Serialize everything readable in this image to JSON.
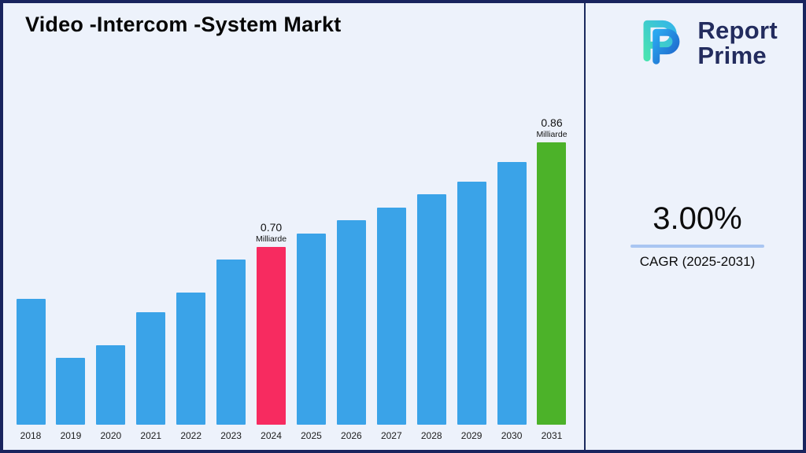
{
  "title": "Video -Intercom -System Markt",
  "brand": {
    "name_line1": "Report",
    "name_line2": "Prime"
  },
  "stats": {
    "cagr_value": "3.00%",
    "cagr_label": "CAGR (2025-2031)"
  },
  "chart_data": {
    "type": "bar",
    "title": "Video -Intercom -System Markt",
    "categories": [
      "2018",
      "2019",
      "2020",
      "2021",
      "2022",
      "2023",
      "2024",
      "2025",
      "2026",
      "2027",
      "2028",
      "2029",
      "2030",
      "2031"
    ],
    "values": [
      0.62,
      0.53,
      0.55,
      0.6,
      0.63,
      0.68,
      0.7,
      0.72,
      0.74,
      0.76,
      0.78,
      0.8,
      0.83,
      0.86
    ],
    "unit": "Milliarde",
    "ylim": [
      0.428,
      0.88
    ],
    "bar_color": "#3AA3E8",
    "annotations": {
      "2024": {
        "value": "0.70",
        "unit": "Milliarde",
        "color": "#F72B60"
      },
      "2031": {
        "value": "0.86",
        "unit": "Milliarde",
        "color": "#4CB229"
      }
    },
    "xlabel": "",
    "ylabel": "",
    "grid": false,
    "legend": false
  }
}
